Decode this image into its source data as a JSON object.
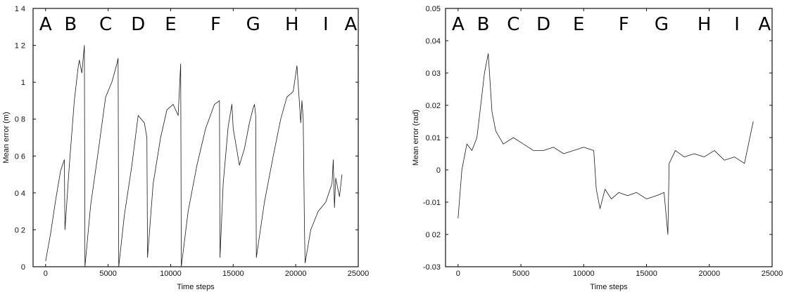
{
  "chart_data": [
    {
      "type": "line",
      "xlabel": "Time steps",
      "ylabel": "Mean error (m)",
      "xlim": [
        -1000,
        25000
      ],
      "ylim": [
        0,
        1.4
      ],
      "x_ticks": [
        0,
        5000,
        10000,
        15000,
        20000,
        25000
      ],
      "y_ticks": [
        0,
        0.2,
        0.4,
        0.6,
        0.8,
        1,
        1.2,
        1.4
      ],
      "x_tick_labels": [
        "0",
        "5000",
        "10000",
        "15000",
        "20000",
        "25000"
      ],
      "y_tick_labels": [
        "0",
        "0 2",
        "0 4",
        "0 6",
        "0 8",
        "1",
        "1 2",
        "1 4"
      ],
      "segment_labels": [
        {
          "label": "A",
          "x": 0
        },
        {
          "label": "B",
          "x": 2000
        },
        {
          "label": "C",
          "x": 4800
        },
        {
          "label": "D",
          "x": 7400
        },
        {
          "label": "E",
          "x": 10000
        },
        {
          "label": "F",
          "x": 13600
        },
        {
          "label": "G",
          "x": 16600
        },
        {
          "label": "H",
          "x": 19700
        },
        {
          "label": "I",
          "x": 22400
        },
        {
          "label": "A",
          "x": 24400
        }
      ],
      "series": [
        {
          "x": [
            0,
            400,
            800,
            1200,
            1500,
            1550,
            1900,
            2300,
            2600,
            2700,
            2900,
            3100,
            3150,
            3600,
            4200,
            4800,
            5300,
            5700,
            5800,
            5850,
            6300,
            6900,
            7400,
            7900,
            8100,
            8150,
            8600,
            9200,
            9700,
            10200,
            10600,
            10800,
            10850,
            11400,
            12100,
            12800,
            13500,
            13900,
            13950,
            14200,
            14600,
            14900,
            15000,
            15500,
            15900,
            16300,
            16600,
            16700,
            16800,
            16850,
            17500,
            18200,
            18800,
            19300,
            19800,
            20100,
            20400,
            20500,
            20600,
            20700,
            20750,
            21200,
            21800,
            22400,
            22900,
            23000,
            23100,
            23200,
            23500,
            23700
          ],
          "y": [
            0.03,
            0.18,
            0.36,
            0.52,
            0.58,
            0.2,
            0.55,
            0.9,
            1.08,
            1.12,
            1.05,
            1.2,
            0.0,
            0.33,
            0.62,
            0.92,
            1.0,
            1.1,
            1.13,
            0.0,
            0.28,
            0.55,
            0.82,
            0.78,
            0.7,
            0.05,
            0.45,
            0.7,
            0.85,
            0.88,
            0.82,
            1.1,
            0.0,
            0.3,
            0.55,
            0.75,
            0.88,
            0.9,
            0.05,
            0.45,
            0.76,
            0.88,
            0.75,
            0.55,
            0.64,
            0.78,
            0.86,
            0.88,
            0.82,
            0.05,
            0.35,
            0.6,
            0.8,
            0.92,
            0.95,
            1.09,
            0.78,
            0.9,
            0.8,
            0.2,
            0.02,
            0.2,
            0.3,
            0.35,
            0.45,
            0.58,
            0.32,
            0.48,
            0.38,
            0.5
          ]
        }
      ]
    },
    {
      "type": "line",
      "xlabel": "Time steps",
      "ylabel": "Mean error (rad)",
      "xlim": [
        -1000,
        25000
      ],
      "ylim": [
        -0.03,
        0.05
      ],
      "x_ticks": [
        0,
        5000,
        10000,
        15000,
        20000,
        25000
      ],
      "y_ticks": [
        -0.03,
        -0.02,
        -0.01,
        0,
        0.01,
        0.02,
        0.03,
        0.04,
        0.05
      ],
      "x_tick_labels": [
        "0",
        "5000",
        "10000",
        "15000",
        "20000",
        "25000"
      ],
      "y_tick_labels": [
        "-0.03",
        "0 02",
        "-0.01",
        "0",
        "0.01",
        "0.02",
        "0 03",
        "0.04",
        "0.05"
      ],
      "segment_labels": [
        {
          "label": "A",
          "x": 0
        },
        {
          "label": "B",
          "x": 2000
        },
        {
          "label": "C",
          "x": 4400
        },
        {
          "label": "D",
          "x": 6800
        },
        {
          "label": "E",
          "x": 9600
        },
        {
          "label": "F",
          "x": 13200
        },
        {
          "label": "G",
          "x": 16200
        },
        {
          "label": "H",
          "x": 19600
        },
        {
          "label": "I",
          "x": 22200
        },
        {
          "label": "A",
          "x": 24400
        }
      ],
      "series": [
        {
          "x": [
            0,
            300,
            700,
            1100,
            1500,
            1800,
            2100,
            2400,
            2700,
            3000,
            3600,
            4400,
            5200,
            6000,
            6800,
            7600,
            8400,
            9200,
            10000,
            10800,
            11000,
            11300,
            11700,
            12200,
            12800,
            13500,
            14200,
            15000,
            15800,
            16400,
            16700,
            16800,
            17300,
            18000,
            18800,
            19600,
            20400,
            21200,
            22000,
            22800,
            23500
          ],
          "y": [
            -0.015,
            0.0,
            0.008,
            0.006,
            0.01,
            0.02,
            0.03,
            0.036,
            0.018,
            0.012,
            0.008,
            0.01,
            0.008,
            0.006,
            0.006,
            0.007,
            0.005,
            0.006,
            0.007,
            0.006,
            -0.006,
            -0.012,
            -0.006,
            -0.009,
            -0.007,
            -0.008,
            -0.007,
            -0.009,
            -0.008,
            -0.007,
            -0.02,
            0.002,
            0.006,
            0.004,
            0.005,
            0.004,
            0.006,
            0.003,
            0.004,
            0.002,
            0.015
          ]
        }
      ]
    }
  ]
}
